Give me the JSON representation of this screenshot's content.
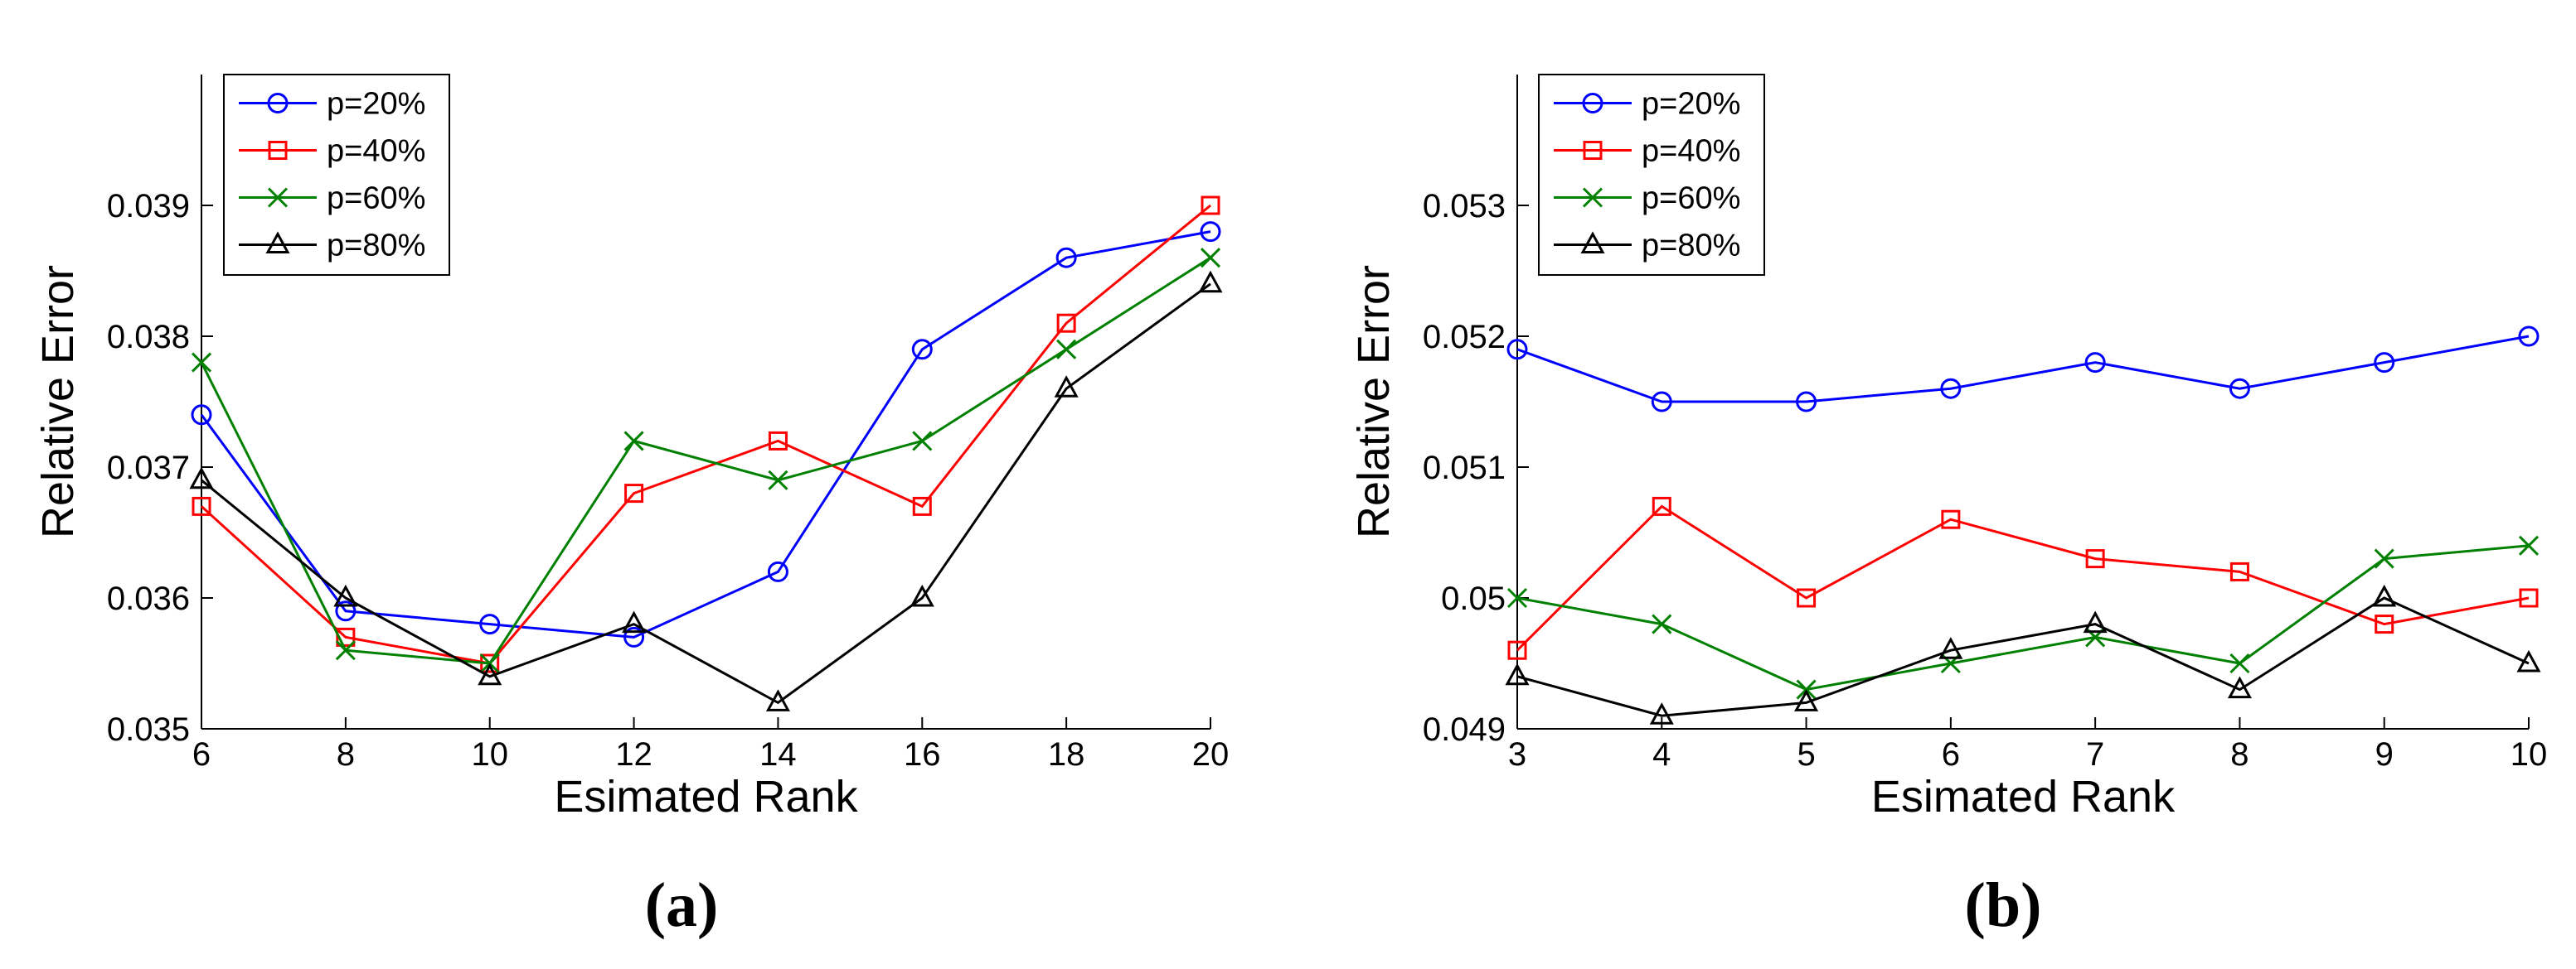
{
  "chart_data": [
    {
      "type": "line",
      "panel_label": "(a)",
      "xlabel": "Esimated Rank",
      "ylabel": "Relative Error",
      "x": [
        6,
        8,
        10,
        12,
        14,
        16,
        18,
        20
      ],
      "xlim": [
        6,
        20
      ],
      "ylim": [
        0.035,
        0.04
      ],
      "xticks": [
        6,
        8,
        10,
        12,
        14,
        16,
        18,
        20
      ],
      "xtick_labels": [
        "6",
        "8",
        "10",
        "12",
        "14",
        "16",
        "18",
        "20"
      ],
      "yticks": [
        0.035,
        0.036,
        0.037,
        0.038,
        0.039
      ],
      "ytick_labels": [
        "0.035",
        "0.036",
        "0.037",
        "0.038",
        "0.039"
      ],
      "grid": false,
      "legend_position": "top-left",
      "series": [
        {
          "name": "p=20%",
          "color": "#0000ff",
          "marker": "circle",
          "values": [
            0.0374,
            0.0359,
            0.0358,
            0.0357,
            0.0362,
            0.0379,
            0.0386,
            0.0388
          ]
        },
        {
          "name": "p=40%",
          "color": "#ff0000",
          "marker": "square",
          "values": [
            0.0367,
            0.0357,
            0.0355,
            0.0368,
            0.0372,
            0.0367,
            0.0381,
            0.039
          ]
        },
        {
          "name": "p=60%",
          "color": "#008000",
          "marker": "x",
          "values": [
            0.0378,
            0.0356,
            0.0355,
            0.0372,
            0.0369,
            0.0372,
            0.0379,
            0.0386
          ]
        },
        {
          "name": "p=80%",
          "color": "#000000",
          "marker": "triangle",
          "values": [
            0.0369,
            0.036,
            0.0354,
            0.0358,
            0.0352,
            0.036,
            0.0376,
            0.0384
          ]
        }
      ]
    },
    {
      "type": "line",
      "panel_label": "(b)",
      "xlabel": "Esimated Rank",
      "ylabel": "Relative Error",
      "x": [
        3,
        4,
        5,
        6,
        7,
        8,
        9,
        10
      ],
      "xlim": [
        3,
        10
      ],
      "ylim": [
        0.049,
        0.054
      ],
      "xticks": [
        3,
        4,
        5,
        6,
        7,
        8,
        9,
        10
      ],
      "xtick_labels": [
        "3",
        "4",
        "5",
        "6",
        "7",
        "8",
        "9",
        "10"
      ],
      "yticks": [
        0.049,
        0.05,
        0.051,
        0.052,
        0.053
      ],
      "ytick_labels": [
        "0.049",
        "0.05",
        "0.051",
        "0.052",
        "0.053"
      ],
      "grid": false,
      "legend_position": "top-left",
      "series": [
        {
          "name": "p=20%",
          "color": "#0000ff",
          "marker": "circle",
          "values": [
            0.0519,
            0.0515,
            0.0515,
            0.0516,
            0.0518,
            0.0516,
            0.0518,
            0.052
          ]
        },
        {
          "name": "p=40%",
          "color": "#ff0000",
          "marker": "square",
          "values": [
            0.0496,
            0.0507,
            0.05,
            0.0506,
            0.0503,
            0.0502,
            0.0498,
            0.05
          ]
        },
        {
          "name": "p=60%",
          "color": "#008000",
          "marker": "x",
          "values": [
            0.05,
            0.0498,
            0.0493,
            0.0495,
            0.0497,
            0.0495,
            0.0503,
            0.0504
          ]
        },
        {
          "name": "p=80%",
          "color": "#000000",
          "marker": "triangle",
          "values": [
            0.0494,
            0.0491,
            0.0492,
            0.0496,
            0.0498,
            0.0493,
            0.05,
            0.0495
          ]
        }
      ]
    }
  ]
}
